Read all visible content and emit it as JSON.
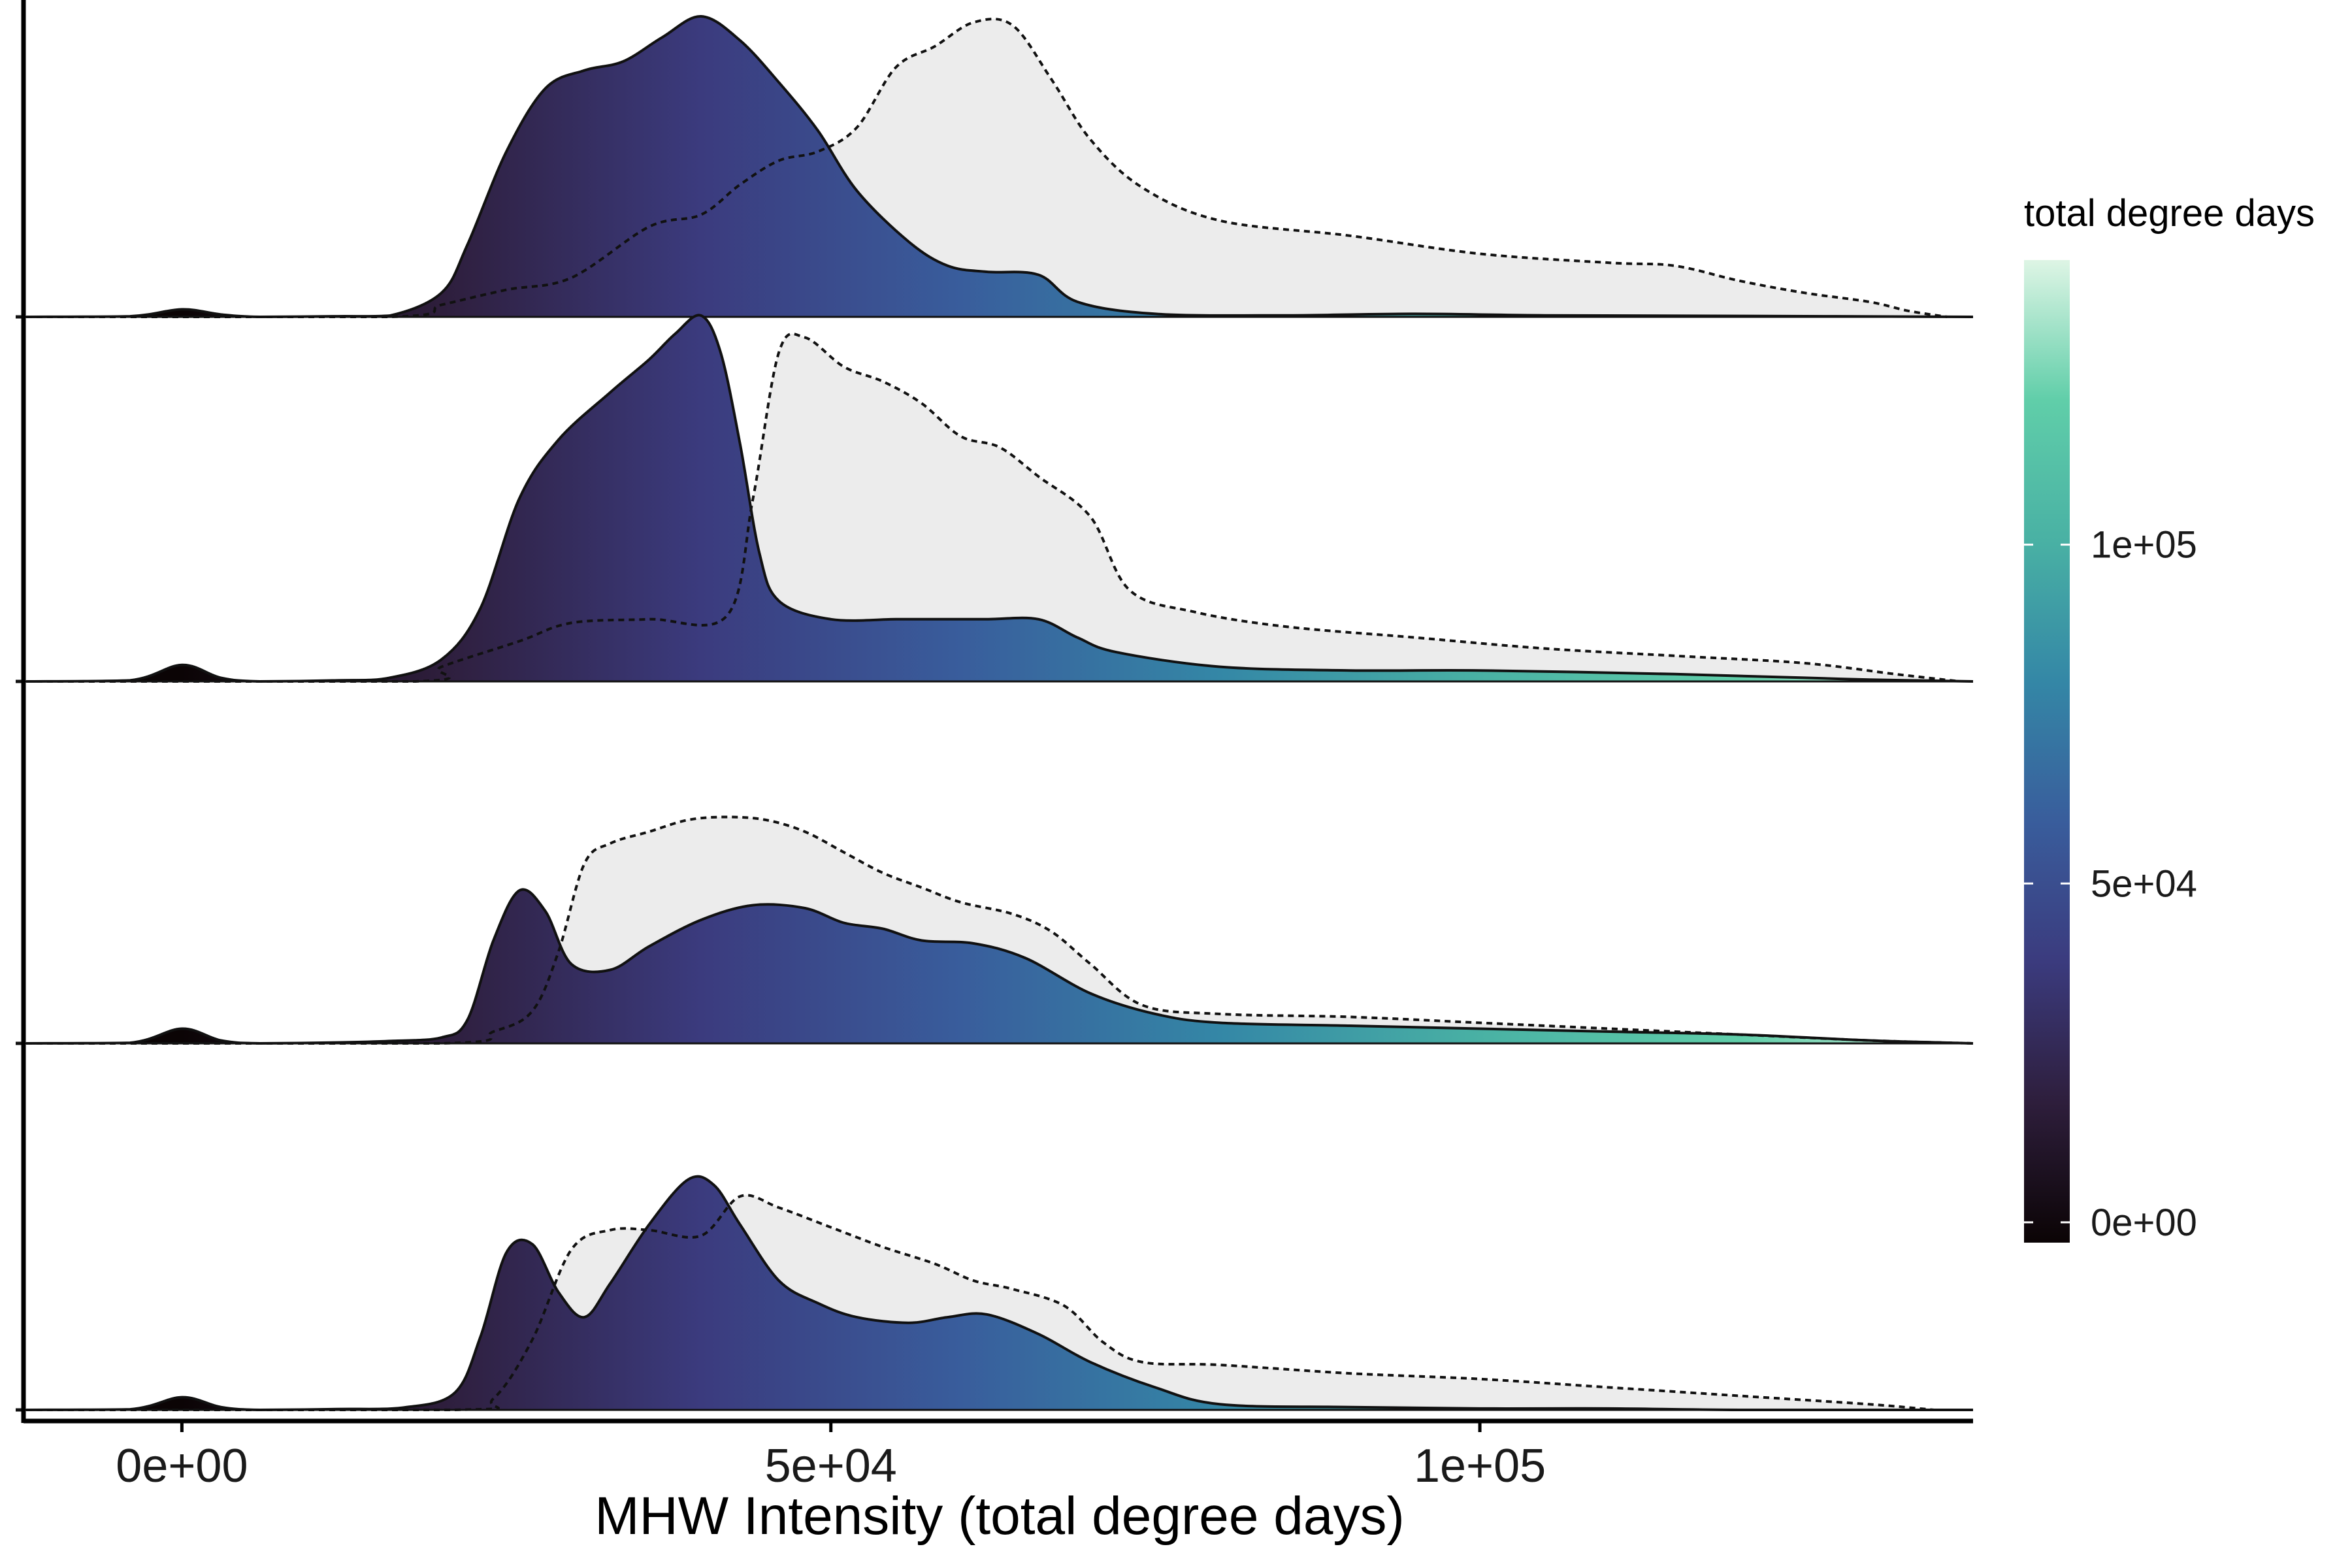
{
  "chart_data": {
    "type": "area",
    "xlabel": "MHW Intensity (total degree days)",
    "ylabel": "",
    "xlim": [
      -12000,
      138000
    ],
    "x_ticks": [
      {
        "value": 0,
        "label": "0e+00"
      },
      {
        "value": 50000,
        "label": "5e+04"
      },
      {
        "value": 100000,
        "label": "1e+05"
      }
    ],
    "legend": {
      "title": "total degree days",
      "position": "right",
      "range": [
        -3000,
        142000
      ],
      "ticks": [
        {
          "value": 0,
          "label": "0e+00"
        },
        {
          "value": 50000,
          "label": "5e+04"
        },
        {
          "value": 100000,
          "label": "1e+05"
        }
      ],
      "colors": [
        "#0b0405",
        "#2e1e3c",
        "#3b3b7e",
        "#395d9c",
        "#3487a6",
        "#49b1a4",
        "#60cea9",
        "#def5e5"
      ]
    },
    "grid": false,
    "panels": [
      {
        "solid": [
          [
            -12000,
            0
          ],
          [
            -4000,
            0.002
          ],
          [
            0,
            0.025
          ],
          [
            3000,
            0.008
          ],
          [
            6000,
            0
          ],
          [
            12000,
            0.002
          ],
          [
            16000,
            0.004
          ],
          [
            20000,
            0.08
          ],
          [
            22000,
            0.24
          ],
          [
            25000,
            0.55
          ],
          [
            28000,
            0.76
          ],
          [
            31000,
            0.82
          ],
          [
            34000,
            0.85
          ],
          [
            37000,
            0.93
          ],
          [
            40000,
            1.0
          ],
          [
            43000,
            0.92
          ],
          [
            46000,
            0.78
          ],
          [
            49000,
            0.62
          ],
          [
            52000,
            0.42
          ],
          [
            56000,
            0.25
          ],
          [
            59000,
            0.17
          ],
          [
            62000,
            0.15
          ],
          [
            66000,
            0.14
          ],
          [
            69000,
            0.05
          ],
          [
            75000,
            0.01
          ],
          [
            85000,
            0.005
          ],
          [
            95000,
            0.01
          ],
          [
            105000,
            0.005
          ],
          [
            120000,
            0.003
          ],
          [
            138000,
            0
          ]
        ],
        "dashed": [
          [
            -12000,
            0
          ],
          [
            16000,
            0
          ],
          [
            20000,
            0.04
          ],
          [
            25000,
            0.09
          ],
          [
            30000,
            0.13
          ],
          [
            36000,
            0.3
          ],
          [
            40000,
            0.34
          ],
          [
            43000,
            0.44
          ],
          [
            46000,
            0.52
          ],
          [
            49000,
            0.55
          ],
          [
            52000,
            0.63
          ],
          [
            55000,
            0.83
          ],
          [
            58000,
            0.9
          ],
          [
            61000,
            0.98
          ],
          [
            64000,
            0.97
          ],
          [
            67000,
            0.79
          ],
          [
            70000,
            0.59
          ],
          [
            74000,
            0.43
          ],
          [
            80000,
            0.32
          ],
          [
            90000,
            0.27
          ],
          [
            100000,
            0.21
          ],
          [
            110000,
            0.18
          ],
          [
            115000,
            0.17
          ],
          [
            120000,
            0.12
          ],
          [
            125000,
            0.08
          ],
          [
            130000,
            0.05
          ],
          [
            133000,
            0.02
          ],
          [
            136000,
            0
          ]
        ]
      },
      {
        "solid": [
          [
            -12000,
            0
          ],
          [
            -4000,
            0.003
          ],
          [
            0,
            0.045
          ],
          [
            3000,
            0.01
          ],
          [
            6000,
            0
          ],
          [
            12000,
            0.003
          ],
          [
            16000,
            0.01
          ],
          [
            20000,
            0.06
          ],
          [
            23000,
            0.2
          ],
          [
            26000,
            0.5
          ],
          [
            29000,
            0.66
          ],
          [
            33000,
            0.79
          ],
          [
            36000,
            0.88
          ],
          [
            38000,
            0.95
          ],
          [
            40000,
            1.0
          ],
          [
            41500,
            0.9
          ],
          [
            43000,
            0.65
          ],
          [
            44500,
            0.35
          ],
          [
            46000,
            0.22
          ],
          [
            50000,
            0.17
          ],
          [
            55000,
            0.17
          ],
          [
            58000,
            0.17
          ],
          [
            62000,
            0.17
          ],
          [
            66000,
            0.17
          ],
          [
            69000,
            0.12
          ],
          [
            72000,
            0.08
          ],
          [
            80000,
            0.04
          ],
          [
            90000,
            0.03
          ],
          [
            100000,
            0.03
          ],
          [
            115000,
            0.02
          ],
          [
            125000,
            0.01
          ],
          [
            130000,
            0.005
          ],
          [
            138000,
            0
          ]
        ],
        "dashed": [
          [
            -12000,
            0
          ],
          [
            18000,
            0
          ],
          [
            20000,
            0.04
          ],
          [
            26000,
            0.11
          ],
          [
            30000,
            0.16
          ],
          [
            36000,
            0.17
          ],
          [
            42000,
            0.18
          ],
          [
            44000,
            0.5
          ],
          [
            46000,
            0.9
          ],
          [
            48000,
            0.94
          ],
          [
            51000,
            0.86
          ],
          [
            54000,
            0.82
          ],
          [
            57000,
            0.76
          ],
          [
            60000,
            0.67
          ],
          [
            63000,
            0.64
          ],
          [
            66000,
            0.56
          ],
          [
            70000,
            0.45
          ],
          [
            73000,
            0.25
          ],
          [
            78000,
            0.19
          ],
          [
            85000,
            0.15
          ],
          [
            95000,
            0.12
          ],
          [
            105000,
            0.09
          ],
          [
            115000,
            0.07
          ],
          [
            125000,
            0.05
          ],
          [
            132000,
            0.02
          ],
          [
            137000,
            0
          ]
        ]
      },
      {
        "solid": [
          [
            -12000,
            0
          ],
          [
            -4000,
            0.002
          ],
          [
            0,
            0.05
          ],
          [
            3000,
            0.01
          ],
          [
            6000,
            0
          ],
          [
            12000,
            0.003
          ],
          [
            16000,
            0.008
          ],
          [
            20000,
            0.02
          ],
          [
            22000,
            0.08
          ],
          [
            24000,
            0.35
          ],
          [
            26000,
            0.52
          ],
          [
            28000,
            0.45
          ],
          [
            30000,
            0.27
          ],
          [
            33000,
            0.25
          ],
          [
            36000,
            0.33
          ],
          [
            40000,
            0.42
          ],
          [
            44000,
            0.47
          ],
          [
            48000,
            0.46
          ],
          [
            51000,
            0.41
          ],
          [
            54000,
            0.39
          ],
          [
            57000,
            0.35
          ],
          [
            61000,
            0.34
          ],
          [
            65000,
            0.29
          ],
          [
            70000,
            0.17
          ],
          [
            75000,
            0.1
          ],
          [
            80000,
            0.07
          ],
          [
            90000,
            0.06
          ],
          [
            100000,
            0.05
          ],
          [
            110000,
            0.04
          ],
          [
            120000,
            0.03
          ],
          [
            130000,
            0.01
          ],
          [
            138000,
            0
          ]
        ],
        "dashed": [
          [
            -12000,
            0
          ],
          [
            20000,
            0
          ],
          [
            24000,
            0.04
          ],
          [
            27000,
            0.11
          ],
          [
            29000,
            0.31
          ],
          [
            31000,
            0.61
          ],
          [
            33000,
            0.68
          ],
          [
            36000,
            0.72
          ],
          [
            39000,
            0.76
          ],
          [
            42000,
            0.77
          ],
          [
            45000,
            0.76
          ],
          [
            48000,
            0.72
          ],
          [
            51000,
            0.65
          ],
          [
            54000,
            0.58
          ],
          [
            57000,
            0.53
          ],
          [
            60000,
            0.48
          ],
          [
            64000,
            0.44
          ],
          [
            67000,
            0.38
          ],
          [
            70000,
            0.27
          ],
          [
            74000,
            0.13
          ],
          [
            80000,
            0.1
          ],
          [
            90000,
            0.09
          ],
          [
            100000,
            0.07
          ],
          [
            110000,
            0.05
          ],
          [
            120000,
            0.03
          ],
          [
            130000,
            0.01
          ],
          [
            138000,
            0
          ]
        ]
      },
      {
        "solid": [
          [
            -12000,
            0
          ],
          [
            -4000,
            0.002
          ],
          [
            0,
            0.045
          ],
          [
            3000,
            0.01
          ],
          [
            6000,
            0
          ],
          [
            12000,
            0.003
          ],
          [
            17000,
            0.008
          ],
          [
            21000,
            0.06
          ],
          [
            23000,
            0.26
          ],
          [
            25000,
            0.56
          ],
          [
            27000,
            0.59
          ],
          [
            29000,
            0.42
          ],
          [
            31000,
            0.33
          ],
          [
            33000,
            0.45
          ],
          [
            36000,
            0.66
          ],
          [
            39000,
            0.82
          ],
          [
            41000,
            0.8
          ],
          [
            43000,
            0.66
          ],
          [
            46000,
            0.46
          ],
          [
            49000,
            0.38
          ],
          [
            52000,
            0.33
          ],
          [
            56000,
            0.31
          ],
          [
            59000,
            0.33
          ],
          [
            62000,
            0.34
          ],
          [
            66000,
            0.27
          ],
          [
            70000,
            0.17
          ],
          [
            75000,
            0.08
          ],
          [
            80000,
            0.02
          ],
          [
            90000,
            0.01
          ],
          [
            100000,
            0.005
          ],
          [
            110000,
            0.005
          ],
          [
            120000,
            0
          ],
          [
            138000,
            0
          ]
        ],
        "dashed": [
          [
            -12000,
            0
          ],
          [
            21000,
            0
          ],
          [
            24000,
            0.04
          ],
          [
            27000,
            0.25
          ],
          [
            30000,
            0.57
          ],
          [
            33000,
            0.64
          ],
          [
            36000,
            0.64
          ],
          [
            40000,
            0.62
          ],
          [
            43000,
            0.76
          ],
          [
            46000,
            0.72
          ],
          [
            50000,
            0.65
          ],
          [
            54000,
            0.58
          ],
          [
            58000,
            0.52
          ],
          [
            61000,
            0.46
          ],
          [
            64000,
            0.43
          ],
          [
            68000,
            0.37
          ],
          [
            71000,
            0.24
          ],
          [
            74000,
            0.17
          ],
          [
            80000,
            0.16
          ],
          [
            90000,
            0.13
          ],
          [
            100000,
            0.11
          ],
          [
            110000,
            0.08
          ],
          [
            120000,
            0.05
          ],
          [
            130000,
            0.02
          ],
          [
            135000,
            0
          ]
        ]
      }
    ]
  }
}
